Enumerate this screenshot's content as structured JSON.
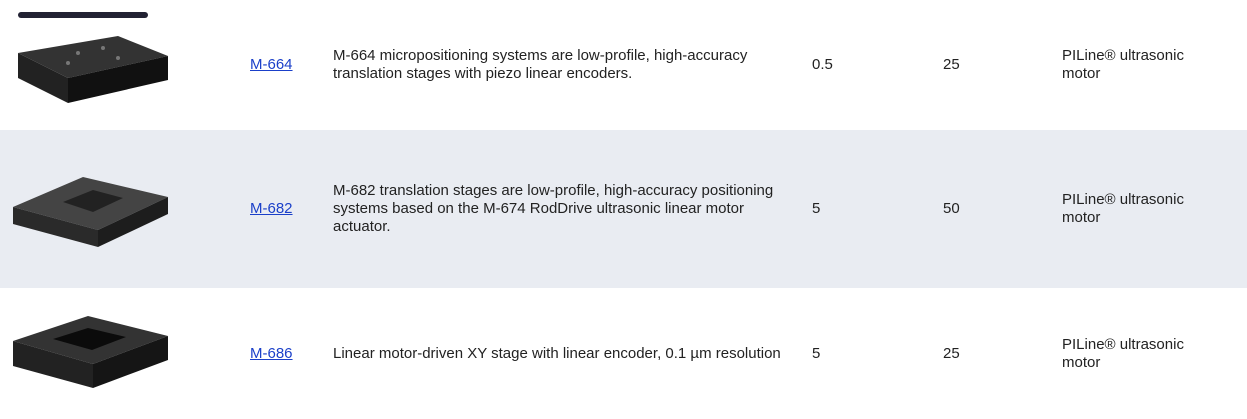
{
  "table": {
    "rows": [
      {
        "model": "M-664",
        "description": "M-664 micropositioning systems are low-profile, high-accuracy translation stages with piezo linear encoders.",
        "value1": 0.5,
        "value2": 25,
        "motor": "PILine® ultrasonic motor"
      },
      {
        "model": "M-682",
        "description": "M-682 translation stages are low-profile, high-accuracy positioning systems based on the M-674 RodDrive ultrasonic linear motor actuator.",
        "value1": 5,
        "value2": 50,
        "motor": "PILine® ultrasonic motor"
      },
      {
        "model": "M-686",
        "description": "Linear motor-driven XY stage with linear encoder, 0.1 µm resolution",
        "value1": 5,
        "value2": 25,
        "motor": "PILine® ultrasonic motor"
      }
    ]
  }
}
